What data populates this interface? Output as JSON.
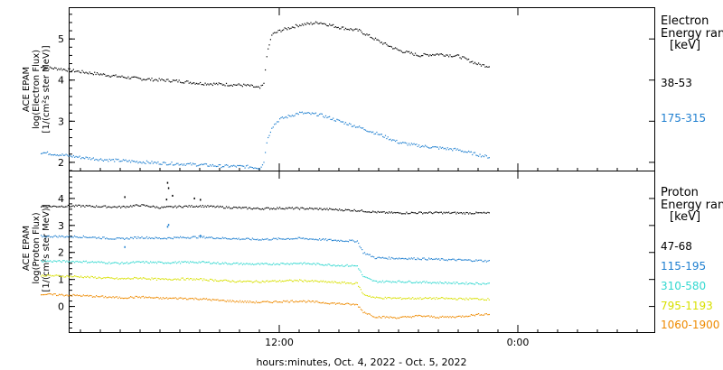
{
  "xaxis": {
    "label": "hours:minutes, Oct.  4, 2022 - Oct.  5, 2022",
    "tick_labels": [
      "12:00",
      "0:00"
    ]
  },
  "chart_data": [
    {
      "type": "scatter",
      "panel": "electron",
      "ylabel_lines": [
        "ACE EPAM",
        "log(Electron Flux)",
        "[1/(cm²s ster MeV)]"
      ],
      "ylim": [
        1.8,
        5.75
      ],
      "yticks": [
        2,
        3,
        4,
        5
      ],
      "legend": {
        "title_lines": [
          "Electron",
          "Energy range",
          "[keV]"
        ],
        "placement": "right"
      },
      "series": [
        {
          "name": "38-53",
          "color": "#000000",
          "points": [
            [
              0,
              4.31
            ],
            [
              1,
              4.27
            ],
            [
              2,
              4.2
            ],
            [
              3,
              4.14
            ],
            [
              4,
              4.08
            ],
            [
              5,
              4.03
            ],
            [
              6,
              4.0
            ],
            [
              7,
              3.97
            ],
            [
              8,
              3.92
            ],
            [
              9,
              3.9
            ],
            [
              10,
              3.88
            ],
            [
              10.5,
              3.86
            ],
            [
              11,
              3.8
            ],
            [
              11.2,
              3.9
            ],
            [
              11.35,
              4.6
            ],
            [
              11.6,
              5.1
            ],
            [
              12,
              5.2
            ],
            [
              13,
              5.34
            ],
            [
              14,
              5.4
            ],
            [
              15,
              5.28
            ],
            [
              16,
              5.2
            ],
            [
              17,
              4.94
            ],
            [
              18,
              4.72
            ],
            [
              19,
              4.6
            ],
            [
              20,
              4.63
            ],
            [
              21,
              4.58
            ],
            [
              22,
              4.38
            ],
            [
              22.6,
              4.33
            ]
          ]
        },
        {
          "name": "175-315",
          "color": "#1e7fd0",
          "points": [
            [
              0,
              2.24
            ],
            [
              1,
              2.18
            ],
            [
              2,
              2.12
            ],
            [
              3,
              2.07
            ],
            [
              4,
              2.04
            ],
            [
              5,
              2.01
            ],
            [
              6,
              1.98
            ],
            [
              7,
              1.96
            ],
            [
              8,
              1.94
            ],
            [
              9,
              1.91
            ],
            [
              10,
              1.9
            ],
            [
              10.5,
              1.89
            ],
            [
              11,
              1.86
            ],
            [
              11.2,
              2.0
            ],
            [
              11.35,
              2.5
            ],
            [
              11.6,
              2.85
            ],
            [
              12,
              3.05
            ],
            [
              13,
              3.2
            ],
            [
              14,
              3.16
            ],
            [
              15,
              3.0
            ],
            [
              16,
              2.85
            ],
            [
              17,
              2.68
            ],
            [
              18,
              2.48
            ],
            [
              19,
              2.4
            ],
            [
              20,
              2.35
            ],
            [
              21,
              2.3
            ],
            [
              22,
              2.18
            ],
            [
              22.6,
              2.12
            ]
          ]
        }
      ]
    },
    {
      "type": "scatter",
      "panel": "proton",
      "ylabel_lines": [
        "ACE EPAM",
        "log(Proton Flux)",
        "[1/(cm²s ster MeV)]"
      ],
      "ylim": [
        -0.95,
        5.0
      ],
      "yticks": [
        0,
        1,
        2,
        3,
        4
      ],
      "legend": {
        "title_lines": [
          "Proton",
          "Energy range",
          "[keV]"
        ],
        "placement": "right"
      },
      "series": [
        {
          "name": "47-68",
          "color": "#000000",
          "points": [
            [
              0,
              3.7
            ],
            [
              2,
              3.72
            ],
            [
              4,
              3.68
            ],
            [
              5,
              3.75
            ],
            [
              6,
              3.66
            ],
            [
              7,
              3.7
            ],
            [
              8,
              3.72
            ],
            [
              9,
              3.68
            ],
            [
              10,
              3.65
            ],
            [
              11,
              3.62
            ],
            [
              12,
              3.64
            ],
            [
              13,
              3.63
            ],
            [
              14,
              3.61
            ],
            [
              15,
              3.58
            ],
            [
              16,
              3.55
            ],
            [
              17,
              3.48
            ],
            [
              18,
              3.46
            ],
            [
              19,
              3.47
            ],
            [
              20,
              3.47
            ],
            [
              21,
              3.46
            ],
            [
              22,
              3.46
            ],
            [
              22.6,
              3.45
            ]
          ],
          "spikes": [
            [
              6.3,
              3.96
            ],
            [
              6.35,
              4.58
            ],
            [
              6.4,
              4.38
            ],
            [
              6.6,
              4.1
            ],
            [
              4.2,
              4.05
            ],
            [
              7.7,
              4.0
            ],
            [
              8.0,
              3.95
            ]
          ]
        },
        {
          "name": "115-195",
          "color": "#1e7fd0",
          "points": [
            [
              0,
              2.6
            ],
            [
              2,
              2.58
            ],
            [
              4,
              2.5
            ],
            [
              5,
              2.56
            ],
            [
              6,
              2.52
            ],
            [
              7,
              2.55
            ],
            [
              8,
              2.57
            ],
            [
              9,
              2.53
            ],
            [
              10,
              2.5
            ],
            [
              11,
              2.48
            ],
            [
              12,
              2.5
            ],
            [
              13,
              2.52
            ],
            [
              14,
              2.48
            ],
            [
              15,
              2.44
            ],
            [
              15.9,
              2.42
            ],
            [
              16.2,
              2.0
            ],
            [
              16.8,
              1.8
            ],
            [
              18,
              1.78
            ],
            [
              19,
              1.77
            ],
            [
              20,
              1.74
            ],
            [
              21,
              1.72
            ],
            [
              22,
              1.7
            ],
            [
              22.6,
              1.68
            ]
          ],
          "spikes": [
            [
              6.35,
              2.95
            ],
            [
              6.4,
              3.02
            ],
            [
              4.2,
              2.2
            ],
            [
              8.0,
              2.62
            ]
          ]
        },
        {
          "name": "310-580",
          "color": "#33d8d0",
          "points": [
            [
              0,
              1.68
            ],
            [
              2,
              1.66
            ],
            [
              4,
              1.6
            ],
            [
              5,
              1.64
            ],
            [
              6,
              1.62
            ],
            [
              7,
              1.63
            ],
            [
              8,
              1.64
            ],
            [
              9,
              1.6
            ],
            [
              10,
              1.58
            ],
            [
              11,
              1.56
            ],
            [
              12,
              1.58
            ],
            [
              13,
              1.6
            ],
            [
              14,
              1.56
            ],
            [
              15,
              1.52
            ],
            [
              15.9,
              1.5
            ],
            [
              16.2,
              1.1
            ],
            [
              16.8,
              0.92
            ],
            [
              18,
              0.92
            ],
            [
              19,
              0.9
            ],
            [
              20,
              0.88
            ],
            [
              21,
              0.86
            ],
            [
              22,
              0.85
            ],
            [
              22.6,
              0.84
            ]
          ]
        },
        {
          "name": "795-1193",
          "color": "#d8e000",
          "points": [
            [
              0,
              1.15
            ],
            [
              2,
              1.1
            ],
            [
              4,
              1.02
            ],
            [
              5,
              1.05
            ],
            [
              6,
              1.0
            ],
            [
              7,
              1.02
            ],
            [
              8,
              1.0
            ],
            [
              9,
              0.96
            ],
            [
              10,
              0.92
            ],
            [
              11,
              0.92
            ],
            [
              12,
              0.94
            ],
            [
              13,
              0.96
            ],
            [
              14,
              0.92
            ],
            [
              15,
              0.88
            ],
            [
              15.9,
              0.85
            ],
            [
              16.2,
              0.45
            ],
            [
              16.8,
              0.32
            ],
            [
              18,
              0.3
            ],
            [
              19,
              0.3
            ],
            [
              20,
              0.3
            ],
            [
              21,
              0.28
            ],
            [
              22,
              0.28
            ],
            [
              22.6,
              0.26
            ]
          ]
        },
        {
          "name": "1060-1900",
          "color": "#ee8a00",
          "points": [
            [
              0,
              0.45
            ],
            [
              2,
              0.4
            ],
            [
              4,
              0.32
            ],
            [
              5,
              0.35
            ],
            [
              6,
              0.3
            ],
            [
              7,
              0.3
            ],
            [
              8,
              0.28
            ],
            [
              9,
              0.22
            ],
            [
              10,
              0.18
            ],
            [
              11,
              0.15
            ],
            [
              12,
              0.18
            ],
            [
              13,
              0.2
            ],
            [
              14,
              0.15
            ],
            [
              15,
              0.1
            ],
            [
              15.9,
              0.06
            ],
            [
              16.2,
              -0.2
            ],
            [
              16.8,
              -0.38
            ],
            [
              18,
              -0.42
            ],
            [
              19,
              -0.35
            ],
            [
              20,
              -0.4
            ],
            [
              21,
              -0.38
            ],
            [
              22,
              -0.3
            ],
            [
              22.6,
              -0.28
            ]
          ]
        }
      ]
    }
  ]
}
